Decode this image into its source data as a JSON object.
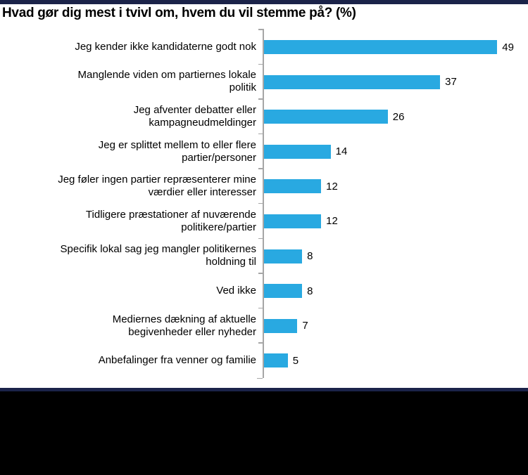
{
  "page": {
    "title": "Hvad gør dig mest i tvivl om, hvem du vil stemme på? (%)"
  },
  "colors": {
    "bar": "#29a9e1",
    "accent_navy": "#1b2349",
    "axis_gray": "#a6a6a6",
    "text": "#000000",
    "footer_black": "#000000",
    "background": "#ffffff"
  },
  "chart_data": {
    "type": "bar",
    "orientation": "horizontal",
    "title": "Hvad gør dig mest i tvivl om, hvem du vil stemme på? (%)",
    "xlabel": "",
    "ylabel": "",
    "xlim": [
      0,
      52
    ],
    "grid": false,
    "legend": "none",
    "value_labels_shown": true,
    "categories": [
      "Jeg kender ikke kandidaterne godt nok",
      "Manglende viden om partiernes lokale politik",
      "Jeg afventer debatter eller kampagneudmeldinger",
      "Jeg er splittet mellem to eller flere partier/personer",
      "Jeg føler ingen partier repræsenterer mine værdier eller interesser",
      "Tidligere præstationer af nuværende politikere/partier",
      "Specifik lokal sag jeg mangler politikernes holdning til",
      "Ved ikke",
      "Mediernes dækning af aktuelle begivenheder eller nyheder",
      "Anbefalinger fra venner og familie"
    ],
    "label_lines": [
      [
        "Jeg kender ikke kandidaterne godt nok"
      ],
      [
        "Manglende viden om partiernes lokale",
        "politik"
      ],
      [
        "Jeg afventer debatter eller",
        "kampagneudmeldinger"
      ],
      [
        "Jeg er splittet mellem to eller flere",
        "partier/personer"
      ],
      [
        "Jeg føler ingen partier repræsenterer mine",
        "værdier eller interesser"
      ],
      [
        "Tidligere præstationer af nuværende",
        "politikere/partier"
      ],
      [
        "Specifik lokal sag jeg mangler politikernes",
        "holdning til"
      ],
      [
        "Ved ikke"
      ],
      [
        "Mediernes dækning af aktuelle",
        "begivenheder eller nyheder"
      ],
      [
        "Anbefalinger fra venner og familie"
      ]
    ],
    "values": [
      49,
      37,
      26,
      14,
      12,
      12,
      8,
      8,
      7,
      5
    ]
  }
}
